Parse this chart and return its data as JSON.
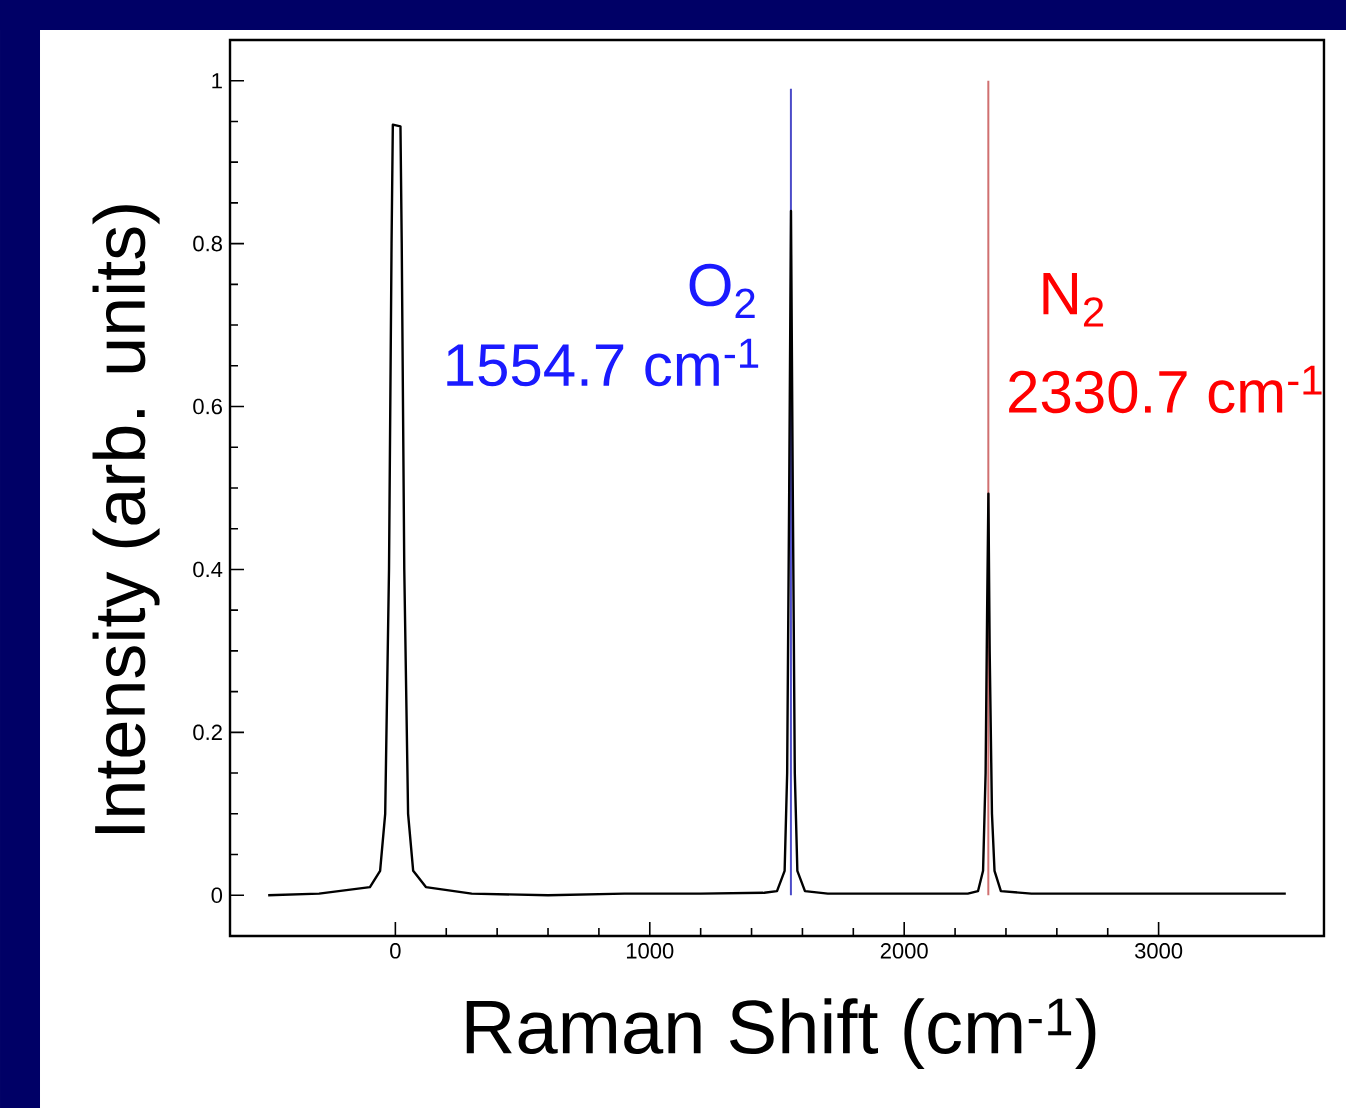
{
  "chart_data": {
    "type": "line",
    "xlabel": "Raman Shift (cm$^{-1}$)",
    "ylabel": "Intensity (arb. units)",
    "xlim": [
      -650,
      3650
    ],
    "ylim": [
      -0.05,
      1.05
    ],
    "xticks": [
      0,
      1000,
      2000,
      3000
    ],
    "yticks": [
      0,
      0.2,
      0.4,
      0.6,
      0.8,
      1
    ],
    "series": [
      {
        "color": "#000000",
        "x": [
          -500,
          -300,
          -100,
          -60,
          -40,
          -25,
          -15,
          -10,
          20,
          25,
          35,
          50,
          70,
          120,
          300,
          600,
          900,
          1200,
          1450,
          1500,
          1530,
          1540,
          1548,
          1555,
          1562,
          1570,
          1580,
          1610,
          1700,
          1900,
          2100,
          2250,
          2290,
          2310,
          2320,
          2326,
          2331,
          2336,
          2345,
          2355,
          2380,
          2500,
          2800,
          3100,
          3500
        ],
        "values": [
          0,
          0.002,
          0.01,
          0.03,
          0.1,
          0.4,
          0.8,
          0.946,
          0.944,
          0.8,
          0.4,
          0.1,
          0.03,
          0.01,
          0.002,
          0,
          0.002,
          0.002,
          0.003,
          0.005,
          0.03,
          0.15,
          0.5,
          0.84,
          0.5,
          0.15,
          0.03,
          0.005,
          0.002,
          0.002,
          0.002,
          0.002,
          0.005,
          0.03,
          0.15,
          0.35,
          0.493,
          0.3,
          0.1,
          0.03,
          0.005,
          0.002,
          0.002,
          0.002,
          0.002
        ]
      },
      {
        "type": "line",
        "color": "#4b4bc8",
        "x": [
          1554.7,
          1554.7
        ],
        "values": [
          0,
          0.99
        ]
      },
      {
        "type": "line",
        "color": "#d07070",
        "x": [
          2330.7,
          2330.7
        ],
        "values": [
          0,
          1
        ]
      }
    ],
    "annotations": [
      "O$_{2}$",
      "1554.7 cm$^{-1}$",
      "N$_{2}$",
      "2330.7 cm$^{-1}$"
    ]
  }
}
